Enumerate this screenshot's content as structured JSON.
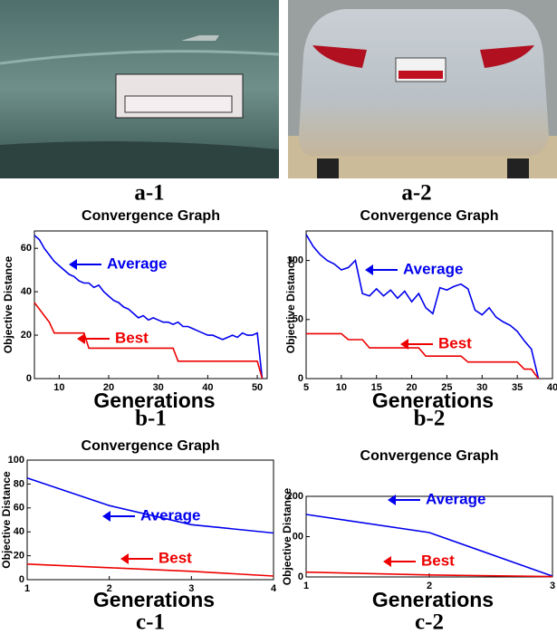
{
  "photos": [
    {
      "caption": "a-1"
    },
    {
      "caption": "a-2"
    }
  ],
  "chart_data": [
    {
      "type": "line",
      "caption": "b-1",
      "title": "Convergence Graph",
      "x_label": "Generations",
      "y_label": "Objective Distance",
      "xlim": [
        5,
        52
      ],
      "xticks": [
        10,
        20,
        30,
        40,
        50
      ],
      "ylim": [
        0,
        68
      ],
      "yticks": [
        0,
        20,
        40,
        60
      ],
      "series": [
        {
          "name": "Average",
          "color": "#0000ee",
          "x": [
            5,
            6,
            7,
            8,
            9,
            10,
            11,
            12,
            13,
            14,
            15,
            16,
            17,
            18,
            19,
            20,
            21,
            22,
            23,
            24,
            25,
            26,
            27,
            28,
            29,
            30,
            31,
            32,
            33,
            34,
            35,
            36,
            37,
            38,
            39,
            40,
            41,
            42,
            43,
            44,
            45,
            46,
            47,
            48,
            49,
            50,
            51
          ],
          "values": [
            66,
            64,
            60,
            57,
            54,
            52,
            50,
            48,
            47,
            45,
            44,
            44,
            42,
            43,
            40,
            38,
            36,
            35,
            33,
            32,
            30,
            28,
            29,
            27,
            28,
            27,
            26,
            26,
            25,
            26,
            24,
            24,
            23,
            22,
            21,
            20,
            20,
            19,
            18,
            19,
            20,
            19,
            21,
            20,
            20,
            21,
            0
          ]
        },
        {
          "name": "Best",
          "color": "#ee0000",
          "x": [
            5,
            6,
            7,
            8,
            9,
            15,
            16,
            33,
            34,
            50,
            51
          ],
          "values": [
            35,
            32,
            29,
            26,
            21,
            21,
            14,
            14,
            8,
            8,
            0
          ]
        }
      ]
    },
    {
      "type": "line",
      "caption": "b-2",
      "title": "Convergence Graph",
      "x_label": "Generations",
      "y_label": "Objective Distance",
      "xlim": [
        5,
        40
      ],
      "xticks": [
        5,
        10,
        15,
        20,
        25,
        30,
        35,
        40
      ],
      "ylim": [
        0,
        125
      ],
      "yticks": [
        0,
        50,
        100
      ],
      "series": [
        {
          "name": "Average",
          "color": "#0000ee",
          "x": [
            5,
            6,
            7,
            8,
            9,
            10,
            11,
            12,
            13,
            14,
            15,
            16,
            17,
            18,
            19,
            20,
            21,
            22,
            23,
            24,
            25,
            26,
            27,
            28,
            29,
            30,
            31,
            32,
            33,
            34,
            35,
            36,
            37,
            38
          ],
          "values": [
            122,
            112,
            105,
            100,
            97,
            92,
            94,
            100,
            72,
            70,
            76,
            70,
            75,
            68,
            74,
            65,
            72,
            60,
            55,
            77,
            75,
            78,
            80,
            76,
            58,
            54,
            60,
            52,
            48,
            45,
            40,
            32,
            25,
            0
          ]
        },
        {
          "name": "Best",
          "color": "#ee0000",
          "x": [
            5,
            10,
            11,
            13,
            14,
            21,
            22,
            27,
            28,
            35,
            36,
            37,
            38
          ],
          "values": [
            38,
            38,
            33,
            33,
            26,
            26,
            19,
            19,
            14,
            14,
            8,
            8,
            0
          ]
        }
      ]
    },
    {
      "type": "line",
      "caption": "c-1",
      "title": "Convergence Graph",
      "x_label": "Generations",
      "y_label": "Objective Distance",
      "xlim": [
        1,
        4
      ],
      "xticks": [
        1,
        2,
        3,
        4
      ],
      "ylim": [
        0,
        100
      ],
      "yticks": [
        0,
        20,
        40,
        60,
        80,
        100
      ],
      "series": [
        {
          "name": "Average",
          "color": "#0000ee",
          "x": [
            1,
            2,
            3,
            4
          ],
          "values": [
            85,
            62,
            46,
            39
          ]
        },
        {
          "name": "Best",
          "color": "#ee0000",
          "x": [
            1,
            2,
            3,
            4
          ],
          "values": [
            13,
            10,
            7,
            3
          ]
        }
      ]
    },
    {
      "type": "line",
      "caption": "c-2",
      "title": "Convergence Graph",
      "x_label": "Generations",
      "y_label": "Objective Distance",
      "xlim": [
        1,
        3
      ],
      "xticks": [
        1,
        2,
        3
      ],
      "ylim": [
        0,
        200
      ],
      "yticks": [
        0,
        {
          "value": 100,
          "label": "00"
        },
        200
      ],
      "series": [
        {
          "name": "Average",
          "color": "#0000ee",
          "x": [
            1,
            2,
            3
          ],
          "values": [
            155,
            110,
            2
          ]
        },
        {
          "name": "Best",
          "color": "#ee0000",
          "x": [
            1,
            2,
            3
          ],
          "values": [
            12,
            5,
            1
          ]
        }
      ]
    }
  ]
}
